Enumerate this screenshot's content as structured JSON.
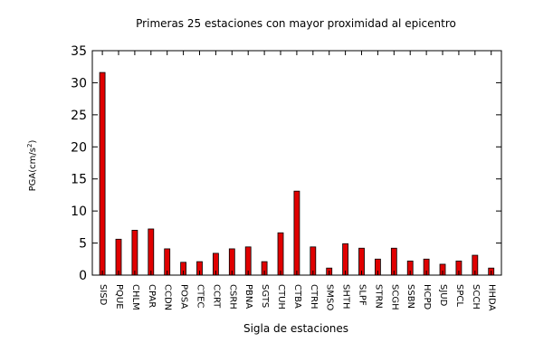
{
  "chart_data": {
    "type": "bar",
    "title": "Primeras 25 estaciones con mayor proximidad al epicentro",
    "xlabel": "Sigla de estaciones",
    "ylabel": "PGA(cm/s",
    "ylabel_superscript": "2",
    "ylabel_suffix": ")",
    "ylim": [
      0,
      35
    ],
    "yticks": [
      0,
      5,
      10,
      15,
      20,
      25,
      30,
      35
    ],
    "grid": false,
    "bar_color": "#e00000",
    "categories": [
      "SISD",
      "PQUE",
      "CHLM",
      "CPAR",
      "CCDN",
      "POSA",
      "CTEC",
      "CCRT",
      "CSRH",
      "PBNA",
      "SGTS",
      "CTUH",
      "CTBA",
      "CTRH",
      "SMSO",
      "SHTH",
      "SLPF",
      "STRN",
      "SCGH",
      "SSBN",
      "HCPD",
      "SJUD",
      "SPCL",
      "SCCH",
      "HHDA"
    ],
    "values": [
      31.6,
      5.6,
      7.0,
      7.2,
      4.1,
      2.0,
      2.1,
      3.4,
      4.1,
      4.4,
      2.1,
      6.6,
      13.1,
      4.4,
      1.1,
      4.9,
      4.2,
      2.5,
      4.2,
      2.2,
      2.5,
      1.7,
      2.2,
      3.1,
      1.1
    ]
  }
}
